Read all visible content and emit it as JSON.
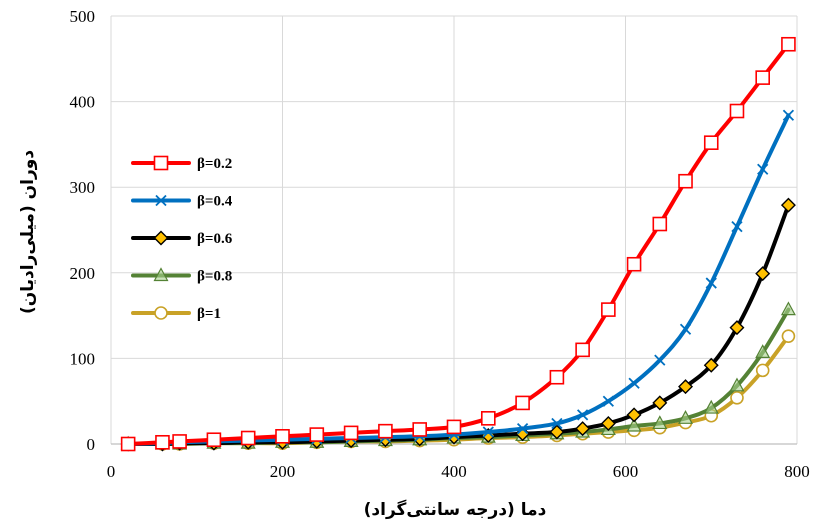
{
  "chart_data": {
    "type": "line",
    "xlabel": "دما (درجه سانتی‌گراد)",
    "ylabel": "دوران (میلی‌رادیان)",
    "xlim": [
      0,
      800
    ],
    "ylim": [
      0,
      500
    ],
    "x_ticks": [
      "0",
      "200",
      "400",
      "600",
      "800"
    ],
    "y_ticks": [
      "0",
      "100",
      "200",
      "300",
      "400",
      "500"
    ],
    "grid": "vertical and horizontal gridlines",
    "legend_position": "left-center",
    "x": [
      20,
      60,
      80,
      120,
      160,
      200,
      240,
      280,
      320,
      360,
      400,
      440,
      480,
      520,
      550,
      580,
      610,
      640,
      670,
      700,
      730,
      760,
      790
    ],
    "series": [
      {
        "name": "β=0.2",
        "color": "#FF0000",
        "marker": "square-open",
        "values": [
          0,
          2,
          3,
          5,
          7,
          9,
          11,
          13,
          15,
          17,
          20,
          30,
          48,
          78,
          110,
          157,
          210,
          257,
          307,
          352,
          389,
          428,
          467
        ]
      },
      {
        "name": "β=0.4",
        "color": "#0070C0",
        "marker": "x",
        "values": [
          0,
          1,
          2,
          3,
          4,
          5,
          6,
          7,
          8,
          9,
          11,
          14,
          18,
          24,
          34,
          50,
          71,
          98,
          134,
          188,
          254,
          321,
          384
        ]
      },
      {
        "name": "β=0.6",
        "color": "#000000",
        "marker": "diamond-gold",
        "values": [
          0,
          0,
          1,
          1,
          2,
          2,
          3,
          4,
          5,
          6,
          8,
          10,
          12,
          14,
          18,
          24,
          34,
          48,
          67,
          92,
          136,
          199,
          279
        ]
      },
      {
        "name": "β=0.8",
        "color": "#548235",
        "marker": "triangle-open",
        "values": [
          0,
          0,
          0,
          1,
          1,
          2,
          2,
          3,
          4,
          5,
          7,
          8,
          10,
          12,
          14,
          17,
          21,
          24,
          30,
          42,
          68,
          107,
          157
        ]
      },
      {
        "name": "β=1",
        "color": "#C9A227",
        "marker": "circle-open",
        "values": [
          0,
          0,
          0,
          1,
          1,
          1,
          2,
          3,
          3,
          4,
          5,
          7,
          8,
          10,
          12,
          14,
          16,
          19,
          25,
          33,
          54,
          86,
          126
        ]
      }
    ]
  }
}
